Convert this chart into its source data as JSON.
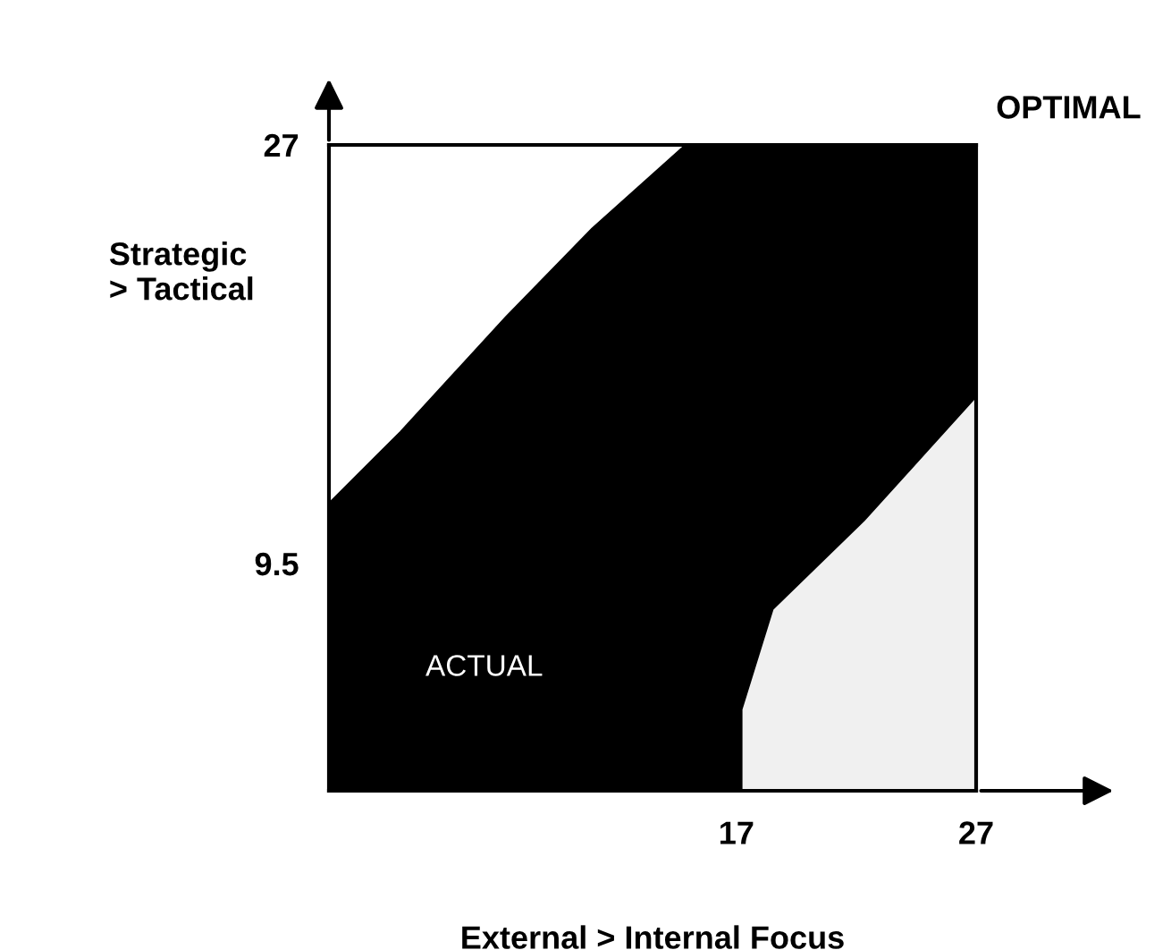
{
  "chart_data": {
    "type": "area",
    "stacked": true,
    "xlabel": "External > Internal Focus",
    "ylabel": "Strategic\n> Tactical",
    "x": [
      0,
      3,
      7.4,
      11,
      14.9,
      17.2,
      17.2,
      18.5,
      22.3,
      27
    ],
    "series": [
      {
        "color": "#f0f0f0",
        "values": [
          0,
          0,
          0,
          0,
          0,
          0,
          3.4,
          7.6,
          11.3,
          16.5
        ]
      },
      {
        "color": "#000000",
        "values": [
          12,
          15,
          19.8,
          23.5,
          27,
          27,
          23.6,
          19.4,
          15.7,
          10.5
        ]
      }
    ],
    "xlim": [
      0,
      27
    ],
    "ylim": [
      0,
      27
    ],
    "xticks": [
      17,
      27
    ],
    "yticks": [
      9.5,
      27
    ],
    "grid": false,
    "legend": false,
    "annotations": [
      {
        "text": "OPTIMAL",
        "x": 27,
        "y": 27
      },
      "ACTUAL"
    ]
  }
}
